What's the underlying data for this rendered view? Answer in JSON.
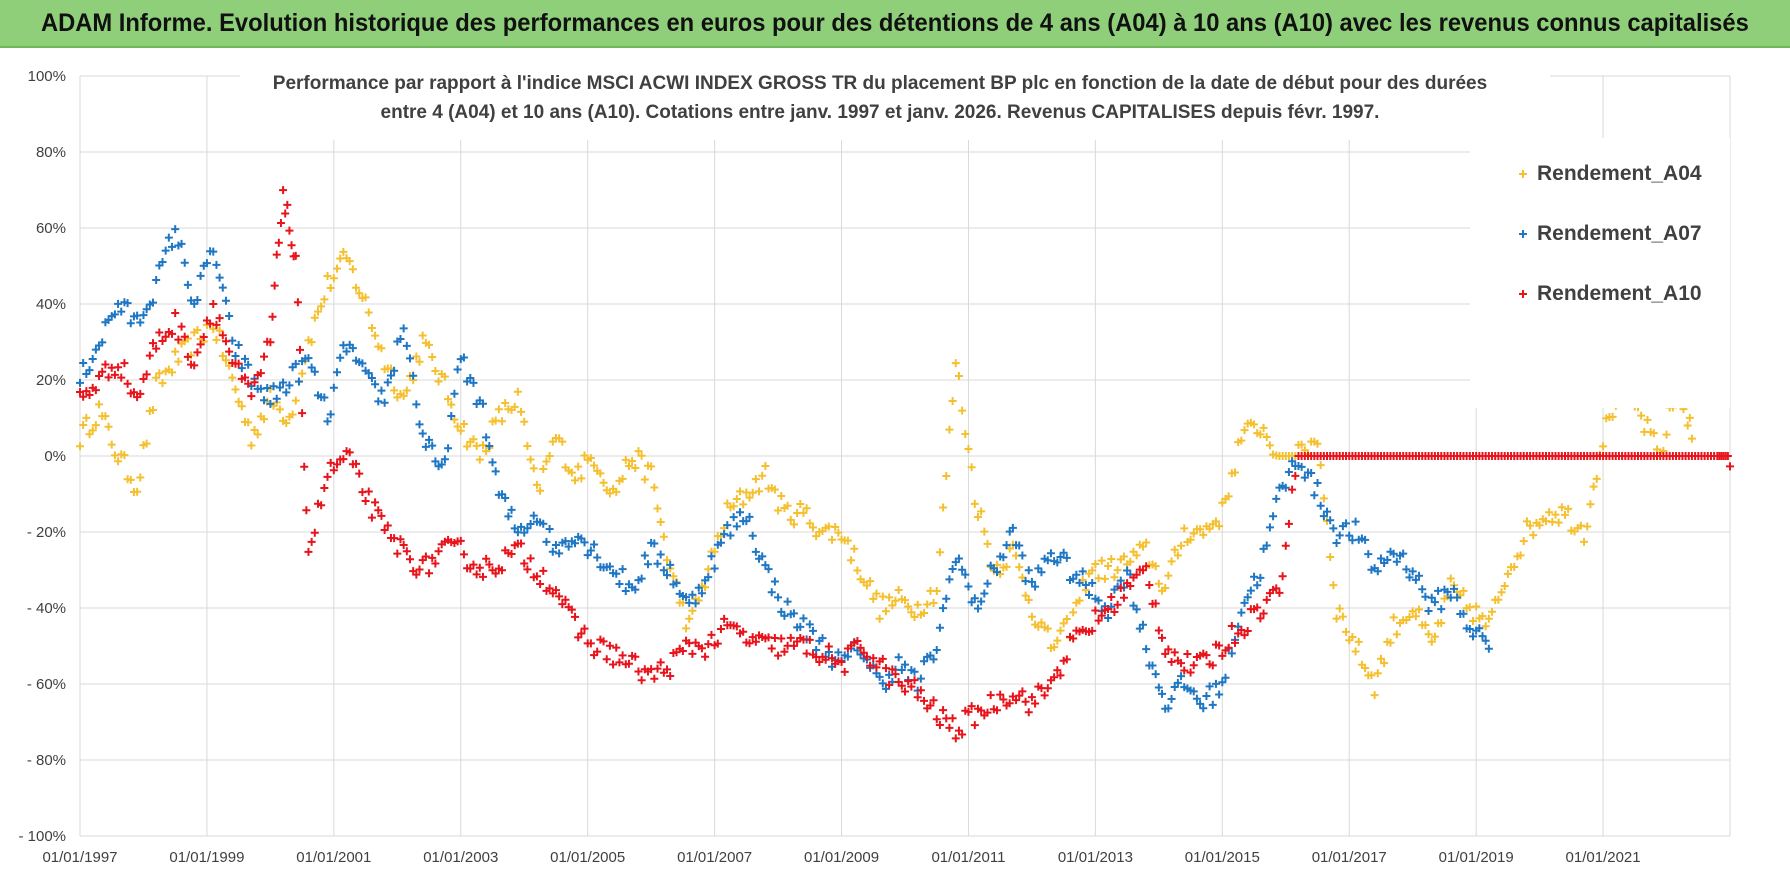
{
  "banner": {
    "title": "ADAM Informe. Evolution historique des performances en euros pour des détentions de 4 ans (A04) à 10 ans (A10) avec les revenus connus capitalisés"
  },
  "colors": {
    "banner_bg": "#8fcf7a",
    "A04": "#f5c030",
    "A07": "#1f77c4",
    "A10": "#e8141c",
    "grid": "#d9d9d9"
  },
  "chart_data": {
    "type": "scatter",
    "marker": "plus",
    "title_line1": "Performance par rapport à l'indice MSCI ACWI INDEX GROSS TR  du placement BP plc en fonction de la date de début pour des durées",
    "title_line2": "entre 4 (A04) et 10 ans (A10).  Cotations entre janv. 1997 et janv. 2026. Revenus CAPITALISES depuis févr. 1997.",
    "xlabel": "",
    "ylabel": "",
    "grid": true,
    "legend_position": "top-right",
    "xlim": [
      "01/01/1997",
      "01/01/2023"
    ],
    "ylim": [
      -100,
      100
    ],
    "y_ticks": [
      100,
      80,
      60,
      40,
      20,
      0,
      -20,
      -40,
      -60,
      -80,
      -100
    ],
    "y_tick_labels": [
      "100%",
      "80%",
      "60%",
      "40%",
      "20%",
      "0%",
      "- 20%",
      "- 40%",
      "- 60%",
      "- 80%",
      "- 100%"
    ],
    "x_tick_labels": [
      "01/01/1997",
      "01/01/1999",
      "01/01/2001",
      "01/01/2003",
      "01/01/2005",
      "01/01/2007",
      "01/01/2009",
      "01/01/2011",
      "01/01/2013",
      "01/01/2015",
      "01/01/2017",
      "01/01/2019",
      "01/01/2021"
    ],
    "series": [
      {
        "name": "Rendement_A04",
        "color": "#f5c030",
        "x": [
          "1997.0",
          "1997.3",
          "1997.6",
          "1997.9",
          "1998.2",
          "1998.5",
          "1998.8",
          "1999.1",
          "1999.4",
          "1999.7",
          "2000.0",
          "2000.3",
          "2000.6",
          "2000.9",
          "2001.2",
          "2001.5",
          "2001.8",
          "2002.1",
          "2002.4",
          "2002.7",
          "2003.0",
          "2003.3",
          "2003.6",
          "2003.9",
          "2004.2",
          "2004.5",
          "2004.8",
          "2005.1",
          "2005.4",
          "2005.7",
          "2006.0",
          "2006.3",
          "2006.6",
          "2006.9",
          "2007.2",
          "2007.5",
          "2007.8",
          "2008.1",
          "2008.4",
          "2008.7",
          "2009.0",
          "2009.3",
          "2009.6",
          "2009.9",
          "2010.2",
          "2010.5",
          "2010.8",
          "2011.1",
          "2011.4",
          "2011.7",
          "2012.0",
          "2012.3",
          "2012.6",
          "2012.9",
          "2013.2",
          "2013.5",
          "2013.8",
          "2014.1",
          "2014.4",
          "2014.7",
          "2015.0",
          "2015.3",
          "2015.6",
          "2015.9",
          "2016.2",
          "2016.5",
          "2016.8",
          "2017.1",
          "2017.4",
          "2017.7",
          "2018.0",
          "2018.3",
          "2018.6",
          "2018.9",
          "2019.2",
          "2019.5",
          "2019.8",
          "2020.1",
          "2020.4",
          "2020.7",
          "2021.0",
          "2021.3",
          "2021.6",
          "2021.9",
          "2022.2",
          "2022.4"
        ],
        "y": [
          5,
          12,
          0,
          -8,
          18,
          25,
          30,
          35,
          20,
          5,
          15,
          10,
          30,
          45,
          52,
          40,
          25,
          15,
          30,
          20,
          8,
          0,
          10,
          15,
          -10,
          5,
          -5,
          0,
          -10,
          0,
          -5,
          -30,
          -45,
          -30,
          -15,
          -10,
          -5,
          -15,
          -15,
          -20,
          -20,
          -30,
          -40,
          -38,
          -40,
          -35,
          25,
          -10,
          -30,
          -25,
          -40,
          -50,
          -45,
          -30,
          -30,
          -28,
          -25,
          -35,
          -20,
          -20,
          -15,
          5,
          8,
          0,
          0,
          5,
          -40,
          -50,
          -60,
          -45,
          -40,
          -50,
          -35,
          -40,
          -45,
          -30,
          -20,
          -15,
          -15,
          -20,
          5,
          20,
          10,
          0,
          20,
          5
        ]
      },
      {
        "name": "Rendement_A07",
        "color": "#1f77c4",
        "x": [
          "1997.0",
          "1997.3",
          "1997.6",
          "1997.9",
          "1998.2",
          "1998.5",
          "1998.8",
          "1999.1",
          "1999.4",
          "1999.7",
          "2000.0",
          "2000.3",
          "2000.6",
          "2000.9",
          "2001.2",
          "2001.5",
          "2001.8",
          "2002.1",
          "2002.4",
          "2002.7",
          "2003.0",
          "2003.3",
          "2003.6",
          "2003.9",
          "2004.2",
          "2004.5",
          "2004.8",
          "2005.1",
          "2005.4",
          "2005.7",
          "2006.0",
          "2006.3",
          "2006.6",
          "2006.9",
          "2007.2",
          "2007.5",
          "2007.8",
          "2008.1",
          "2008.4",
          "2008.7",
          "2009.0",
          "2009.3",
          "2009.6",
          "2009.9",
          "2010.2",
          "2010.5",
          "2010.8",
          "2011.1",
          "2011.4",
          "2011.7",
          "2012.0",
          "2012.3",
          "2012.6",
          "2012.9",
          "2013.2",
          "2013.5",
          "2013.8",
          "2014.1",
          "2014.4",
          "2014.7",
          "2015.0",
          "2015.3",
          "2015.6",
          "2015.9",
          "2016.2",
          "2016.5",
          "2016.8",
          "2017.1",
          "2017.4",
          "2017.7",
          "2018.0",
          "2018.3",
          "2018.6",
          "2018.9",
          "2019.2"
        ],
        "y": [
          20,
          30,
          40,
          35,
          45,
          60,
          40,
          55,
          30,
          20,
          15,
          20,
          25,
          10,
          30,
          20,
          15,
          35,
          5,
          -5,
          25,
          15,
          -10,
          -20,
          -15,
          -25,
          -20,
          -25,
          -30,
          -35,
          -25,
          -30,
          -40,
          -30,
          -20,
          -15,
          -30,
          -40,
          -45,
          -50,
          -55,
          -50,
          -60,
          -55,
          -60,
          -50,
          -25,
          -40,
          -30,
          -20,
          -35,
          -25,
          -30,
          -35,
          -40,
          -30,
          -50,
          -65,
          -60,
          -65,
          -60,
          -40,
          -30,
          -10,
          0,
          -10,
          -20,
          -20,
          -30,
          -25,
          -30,
          -40,
          -35,
          -45,
          -50
        ]
      },
      {
        "name": "Rendement_A10",
        "color": "#e8141c",
        "x": [
          "1997.0",
          "1997.3",
          "1997.6",
          "1997.9",
          "1998.2",
          "1998.5",
          "1998.8",
          "1999.1",
          "1999.4",
          "1999.7",
          "2000.0",
          "2000.2",
          "2000.4",
          "2000.6",
          "2000.9",
          "2001.2",
          "2001.5",
          "2001.8",
          "2002.1",
          "2002.4",
          "2002.7",
          "2003.0",
          "2003.3",
          "2003.6",
          "2003.9",
          "2004.2",
          "2004.5",
          "2004.8",
          "2005.1",
          "2005.4",
          "2005.7",
          "2006.0",
          "2006.3",
          "2006.6",
          "2006.9",
          "2007.2",
          "2007.5",
          "2007.8",
          "2008.1",
          "2008.4",
          "2008.7",
          "2009.0",
          "2009.3",
          "2009.6",
          "2009.9",
          "2010.2",
          "2010.5",
          "2010.8",
          "2011.1",
          "2011.4",
          "2011.7",
          "2012.0",
          "2012.3",
          "2012.6",
          "2012.9",
          "2013.2",
          "2013.5",
          "2013.8",
          "2014.1",
          "2014.4",
          "2014.7",
          "2015.0",
          "2015.3",
          "2015.6",
          "2015.9",
          "2016.2",
          "2016.5",
          "2016.8",
          "2017.1",
          "2017.4",
          "2017.7",
          "2018.0",
          "2018.3",
          "2018.6",
          "2018.9",
          "2019.2",
          "2019.5",
          "2019.8",
          "2020.1",
          "2020.4",
          "2020.7",
          "2021.0",
          "2021.3",
          "2021.6",
          "2021.9",
          "2022.2",
          "2022.5",
          "2022.8",
          "2023.0"
        ],
        "y": [
          15,
          20,
          25,
          15,
          30,
          35,
          25,
          40,
          25,
          15,
          30,
          70,
          50,
          -25,
          -5,
          0,
          -10,
          -20,
          -25,
          -30,
          -25,
          -25,
          -30,
          -28,
          -25,
          -30,
          -35,
          -45,
          -50,
          -52,
          -55,
          -58,
          -55,
          -50,
          -50,
          -45,
          -48,
          -50,
          -50,
          -50,
          -52,
          -55,
          -50,
          -55,
          -60,
          -62,
          -68,
          -72,
          -68,
          -65,
          -62,
          -65,
          -60,
          -50,
          -45,
          -40,
          -35,
          -30,
          -50,
          -55,
          -55,
          -50,
          -45,
          -40,
          -35,
          0,
          0,
          0,
          0,
          0,
          0,
          0,
          0,
          0,
          0,
          0,
          0,
          0,
          0,
          0,
          0,
          0,
          0,
          0,
          0,
          0,
          0,
          0,
          0
        ]
      }
    ]
  }
}
